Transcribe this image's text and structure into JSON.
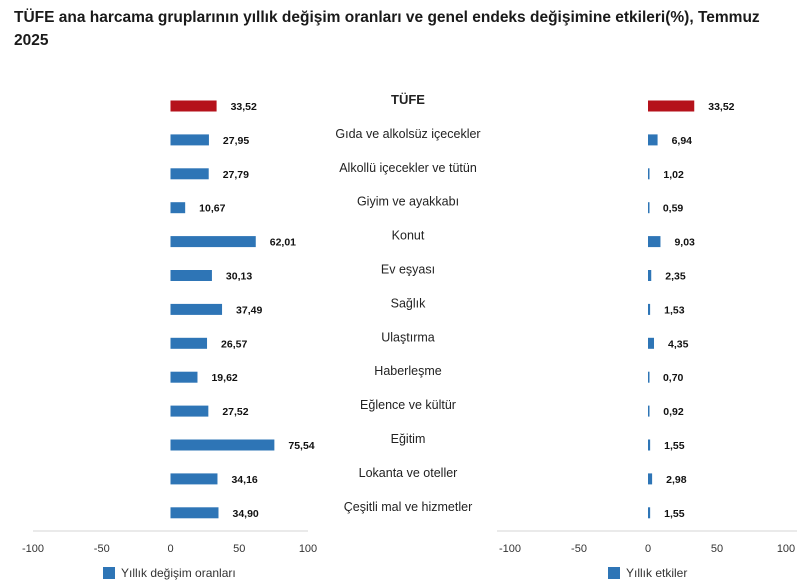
{
  "chart_data": {
    "type": "bar",
    "title": "TÜFE ana harcama gruplarının yıllık değişim oranları ve genel endeks değişimine etkileri(%), Temmuz 2025",
    "categories": [
      "TÜFE",
      "Gıda ve alkolsüz içecekler",
      "Alkollü içecekler ve tütün",
      "Giyim ve ayakkabı",
      "Konut",
      "Ev eşyası",
      "Sağlık",
      "Ulaştırma",
      "Haberleşme",
      "Eğlence ve kültür",
      "Eğitim",
      "Lokanta ve oteller",
      "Çeşitli mal ve hizmetler"
    ],
    "series": [
      {
        "name": "Yıllık değişim oranları",
        "values": [
          33.52,
          27.95,
          27.79,
          10.67,
          62.01,
          30.13,
          37.49,
          26.57,
          19.62,
          27.52,
          75.54,
          34.16,
          34.9
        ],
        "labels": [
          "33,52",
          "27,95",
          "27,79",
          "10,67",
          "62,01",
          "30,13",
          "37,49",
          "26,57",
          "19,62",
          "27,52",
          "75,54",
          "34,16",
          "34,90"
        ]
      },
      {
        "name": "Yıllık etkiler",
        "values": [
          33.52,
          6.94,
          1.02,
          0.59,
          9.03,
          2.35,
          1.53,
          4.35,
          0.7,
          0.92,
          1.55,
          2.98,
          1.55
        ],
        "labels": [
          "33,52",
          "6,94",
          "1,02",
          "0,59",
          "9,03",
          "2,35",
          "1,53",
          "4,35",
          "0,70",
          "0,92",
          "1,55",
          "2,98",
          "1,55"
        ]
      }
    ],
    "xlim": [
      -100,
      100
    ],
    "xticks": [
      -100,
      -50,
      0,
      50,
      100
    ],
    "xtick_labels": [
      "-100",
      "-50",
      "0",
      "50",
      "100"
    ],
    "colors": {
      "highlight": "#b5121b",
      "bar": "#2e75b6"
    },
    "highlight_category": "TÜFE",
    "legend": "bottom",
    "grid": false
  }
}
